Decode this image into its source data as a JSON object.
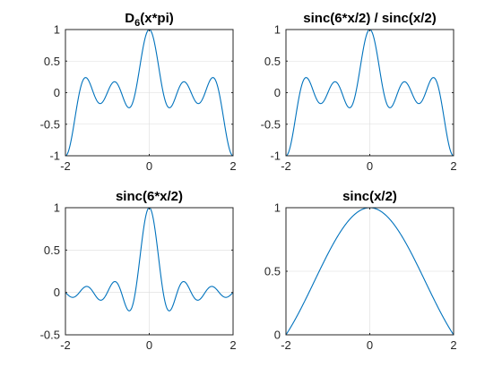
{
  "chart_data": [
    {
      "type": "line",
      "title_parts": [
        {
          "text": "D",
          "sub": false
        },
        {
          "text": "6",
          "sub": true
        },
        {
          "text": "(x*pi)",
          "sub": false
        }
      ],
      "function": "D6(x*pi)",
      "xlim": [
        -2,
        2
      ],
      "ylim": [
        -1,
        1
      ],
      "xticks": [
        -2,
        0,
        2
      ],
      "yticks": [
        -1,
        -0.5,
        0,
        0.5,
        1
      ],
      "xtick_labels": [
        "-2",
        "0",
        "2"
      ],
      "ytick_labels": [
        "-1",
        "-0.5",
        "0",
        "0.5",
        "1"
      ],
      "grid": true,
      "line_color": "#0072BD",
      "series": [
        {
          "x": [
            -2,
            -1.5,
            -1,
            -0.5,
            0,
            0.5,
            1,
            1.5,
            2
          ],
          "values": [
            -1,
            0.24,
            -0.2,
            -0.2,
            1,
            -0.2,
            -0.2,
            0.24,
            -1
          ]
        }
      ]
    },
    {
      "type": "line",
      "title_parts": [
        {
          "text": "sinc(6*x/2) / sinc(x/2)",
          "sub": false
        }
      ],
      "function": "sinc6_over_sinc",
      "xlim": [
        -2,
        2
      ],
      "ylim": [
        -1,
        1
      ],
      "xticks": [
        -2,
        0,
        2
      ],
      "yticks": [
        -1,
        -0.5,
        0,
        0.5,
        1
      ],
      "xtick_labels": [
        "-2",
        "0",
        "2"
      ],
      "ytick_labels": [
        "-1",
        "-0.5",
        "0",
        "0.5",
        "1"
      ],
      "grid": true,
      "line_color": "#0072BD",
      "series": [
        {
          "x": [
            -2,
            -1.5,
            -1,
            -0.5,
            0,
            0.5,
            1,
            1.5,
            2
          ],
          "values": [
            -1,
            0.24,
            -0.2,
            -0.2,
            1,
            -0.2,
            -0.2,
            0.24,
            -1
          ]
        }
      ]
    },
    {
      "type": "line",
      "title_parts": [
        {
          "text": "sinc(6*x/2)",
          "sub": false
        }
      ],
      "function": "sinc6",
      "xlim": [
        -2,
        2
      ],
      "ylim": [
        -0.5,
        1
      ],
      "xticks": [
        -2,
        0,
        2
      ],
      "yticks": [
        -0.5,
        0,
        0.5,
        1
      ],
      "xtick_labels": [
        "-2",
        "0",
        "2"
      ],
      "ytick_labels": [
        "-0.5",
        "0",
        "0.5",
        "1"
      ],
      "grid": true,
      "line_color": "#0072BD",
      "series": [
        {
          "x": [
            -2,
            -1.5,
            -1,
            -0.5,
            0,
            0.5,
            1,
            1.5,
            2
          ],
          "values": [
            0,
            0.07,
            0,
            -0.2,
            1,
            -0.2,
            0,
            0.07,
            0
          ]
        }
      ]
    },
    {
      "type": "line",
      "title_parts": [
        {
          "text": "sinc(x/2)",
          "sub": false
        }
      ],
      "function": "sinc_half",
      "xlim": [
        -2,
        2
      ],
      "ylim": [
        0,
        1
      ],
      "xticks": [
        -2,
        0,
        2
      ],
      "yticks": [
        0,
        0.5,
        1
      ],
      "xtick_labels": [
        "-2",
        "0",
        "2"
      ],
      "ytick_labels": [
        "0",
        "0.5",
        "1"
      ],
      "grid": true,
      "line_color": "#0072BD",
      "series": [
        {
          "x": [
            -2,
            -1,
            0,
            1,
            2
          ],
          "values": [
            0,
            0.64,
            1,
            0.64,
            0
          ]
        }
      ]
    }
  ]
}
